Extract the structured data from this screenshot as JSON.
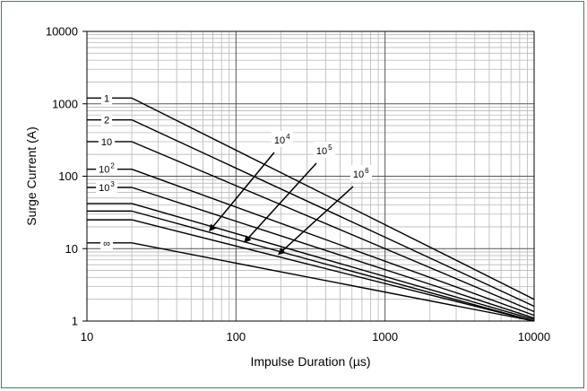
{
  "chart_data": {
    "type": "line",
    "title": "",
    "xlabel": "Impulse Duration (µs)",
    "ylabel": "Surge Current (A)",
    "x_scale": "log",
    "y_scale": "log",
    "xlim": [
      10,
      10000
    ],
    "ylim": [
      1,
      10000
    ],
    "x_ticks": [
      "10",
      "100",
      "1000",
      "10000"
    ],
    "y_ticks": [
      "1",
      "10",
      "100",
      "1000",
      "10000"
    ],
    "grid": true,
    "series": [
      {
        "name": "1",
        "label_base": "1",
        "label_exp": "",
        "x": [
          20,
          10000
        ],
        "y": [
          1200,
          2.0
        ]
      },
      {
        "name": "2",
        "label_base": "2",
        "label_exp": "",
        "x": [
          20,
          10000
        ],
        "y": [
          600,
          1.6
        ]
      },
      {
        "name": "10",
        "label_base": "10",
        "label_exp": "",
        "x": [
          20,
          10000
        ],
        "y": [
          300,
          1.35
        ]
      },
      {
        "name": "10²",
        "label_base": "10",
        "label_exp": "2",
        "x": [
          20,
          10000
        ],
        "y": [
          125,
          1.2
        ]
      },
      {
        "name": "10³",
        "label_base": "10",
        "label_exp": "3",
        "x": [
          20,
          10000
        ],
        "y": [
          70,
          1.1
        ]
      },
      {
        "name": "",
        "label_base": "",
        "label_exp": "",
        "x": [
          20,
          10000
        ],
        "y": [
          42,
          1.05
        ]
      },
      {
        "name": "",
        "label_base": "",
        "label_exp": "",
        "x": [
          20,
          10000
        ],
        "y": [
          33,
          1.0
        ]
      },
      {
        "name": "",
        "label_base": "",
        "label_exp": "",
        "x": [
          20,
          10000
        ],
        "y": [
          25,
          1.0
        ]
      },
      {
        "name": "∞",
        "label_base": "∞",
        "label_exp": "",
        "x": [
          20,
          10000
        ],
        "y": [
          12,
          1.0
        ]
      }
    ],
    "annotations": [
      {
        "base": "10",
        "exp": "4",
        "arrow_to": [
          67,
          18
        ]
      },
      {
        "base": "10",
        "exp": "5",
        "arrow_to": [
          115,
          12.5
        ]
      },
      {
        "base": "10",
        "exp": "6",
        "arrow_to": [
          195,
          8.5
        ]
      }
    ]
  }
}
